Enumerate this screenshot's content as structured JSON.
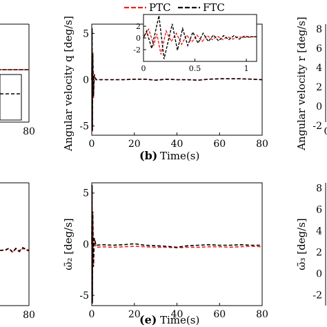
{
  "legend": {
    "placement": "top-center",
    "entries": [
      {
        "label": "PTC",
        "color": "#e8211d"
      },
      {
        "label": "FTC",
        "color": "#000000"
      }
    ]
  },
  "captions": {
    "b": "(b)",
    "e": "(e)",
    "time_label": "Time(s)"
  },
  "chart_data": [
    {
      "id": "panel-left-top",
      "type": "line",
      "xlabel": "",
      "ylabel": "",
      "x_ticks": [
        "80"
      ],
      "xlim": [
        0,
        80
      ],
      "note": "left panel partially visible (cropped)"
    },
    {
      "id": "panel-b",
      "type": "line",
      "caption": "(b)",
      "xlabel": "Time(s)",
      "ylabel": "Angular velocity q [deg/s]",
      "xlim": [
        0,
        80
      ],
      "ylim": [
        -6,
        6
      ],
      "x_ticks": [
        "0",
        "20",
        "40",
        "60",
        "80"
      ],
      "y_ticks": [
        "-5",
        "0",
        "5"
      ],
      "grid": false,
      "legend": "top-center",
      "series": [
        {
          "name": "PTC",
          "color": "#e8211d",
          "x": [
            0,
            0.15,
            0.3,
            0.5,
            0.8,
            1.2,
            2,
            5,
            10,
            15,
            20,
            25,
            30,
            35,
            40,
            45,
            50,
            55,
            60,
            65,
            70,
            75,
            80
          ],
          "y": [
            0,
            5.6,
            -5.6,
            3.0,
            -2.0,
            0.6,
            0,
            0,
            0,
            0,
            0.05,
            0.05,
            -0.05,
            0.05,
            0,
            0,
            -0.05,
            0.05,
            0.1,
            0.1,
            0.1,
            0.05,
            0
          ]
        },
        {
          "name": "FTC",
          "color": "#000000",
          "x": [
            0,
            0.15,
            0.3,
            0.5,
            0.8,
            1.2,
            2,
            5,
            10,
            15,
            20,
            25,
            30,
            35,
            40,
            45,
            50,
            55,
            60,
            65,
            70,
            75,
            80
          ],
          "y": [
            0,
            5.5,
            -5.5,
            2.8,
            -1.8,
            0.5,
            0,
            0,
            0,
            0,
            0.05,
            0.05,
            -0.05,
            0.05,
            0,
            0,
            -0.05,
            0.05,
            0.1,
            0.1,
            0.1,
            0.05,
            0
          ]
        }
      ],
      "inset": {
        "xlim": [
          0,
          1.1
        ],
        "ylim": [
          -4,
          4
        ],
        "x_ticks": [
          "0",
          "0.5",
          "1"
        ],
        "y_ticks": [
          "-2",
          "0",
          "2"
        ],
        "series": [
          {
            "name": "PTC",
            "color": "#e8211d",
            "x": [
              0,
              0.05,
              0.1,
              0.13,
              0.17,
              0.22,
              0.27,
              0.32,
              0.37,
              0.42,
              0.47,
              0.52,
              0.57,
              0.62,
              0.67,
              0.72,
              0.77,
              0.82,
              0.87,
              0.92,
              0.97,
              1.02,
              1.07,
              1.1
            ],
            "y": [
              0,
              1.5,
              -1.2,
              0.7,
              -2.8,
              1.2,
              -0.6,
              0.8,
              -1.1,
              0.5,
              -0.7,
              0.5,
              -0.6,
              0.4,
              -0.3,
              0.3,
              -0.3,
              0.2,
              -0.2,
              0.2,
              0.1,
              0.1,
              0.2,
              0.2
            ]
          },
          {
            "name": "FTC",
            "color": "#000000",
            "x": [
              0,
              0.03,
              0.08,
              0.15,
              0.2,
              0.28,
              0.33,
              0.38,
              0.43,
              0.48,
              0.53,
              0.58,
              0.63,
              0.68,
              0.73,
              0.78,
              0.83,
              0.88,
              0.93,
              0.98,
              1.03,
              1.08,
              1.1
            ],
            "y": [
              0,
              1.2,
              -1.8,
              3.8,
              -3.6,
              2.4,
              -2.1,
              1.6,
              -1.3,
              1.0,
              -0.9,
              0.8,
              -0.6,
              0.5,
              -0.5,
              0.4,
              -0.3,
              0.4,
              -0.2,
              0.3,
              0.2,
              0.2,
              0.2
            ]
          }
        ]
      }
    },
    {
      "id": "panel-right-top",
      "type": "line",
      "xlabel": "",
      "ylabel": "Angular velocity r [deg/s]",
      "ylim": [
        -3,
        8.5
      ],
      "x_ticks": [
        "0"
      ],
      "y_ticks": [
        "-2",
        "0",
        "2",
        "4",
        "6",
        "8"
      ],
      "note": "right panel partially visible (cropped)"
    },
    {
      "id": "panel-left-bottom",
      "type": "line",
      "xlabel": "",
      "ylabel": "",
      "x_ticks": [
        "80"
      ],
      "xlim": [
        0,
        80
      ],
      "note": "left panel partially visible (cropped)"
    },
    {
      "id": "panel-e",
      "type": "line",
      "caption": "(e)",
      "xlabel": "Time(s)",
      "ylabel": "ω̃₂ [deg/s]",
      "xlim": [
        0,
        80
      ],
      "ylim": [
        -6,
        6
      ],
      "x_ticks": [
        "0",
        "20",
        "40",
        "60",
        "80"
      ],
      "y_ticks": [
        "-5",
        "0",
        "5"
      ],
      "grid": false,
      "series": [
        {
          "name": "PTC",
          "color": "#e8211d",
          "x": [
            0,
            0.15,
            0.3,
            0.5,
            0.8,
            1.2,
            2,
            5,
            10,
            15,
            20,
            25,
            30,
            35,
            40,
            45,
            50,
            55,
            60,
            65,
            70,
            75,
            80
          ],
          "y": [
            0,
            5.5,
            -5.5,
            3,
            -2,
            0.5,
            -0.3,
            -0.25,
            -0.3,
            -0.25,
            -0.2,
            -0.25,
            -0.3,
            -0.3,
            -0.35,
            -0.3,
            -0.3,
            -0.25,
            -0.25,
            -0.3,
            -0.25,
            -0.2,
            -0.25
          ]
        },
        {
          "name": "FTC",
          "color": "#000000",
          "x": [
            0,
            0.15,
            0.3,
            0.5,
            0.8,
            1.2,
            2,
            5,
            10,
            15,
            20,
            25,
            30,
            35,
            40,
            45,
            50,
            55,
            60,
            65,
            70,
            75,
            80
          ],
          "y": [
            0,
            5.8,
            -5.8,
            3.2,
            -2.2,
            0.6,
            -0.1,
            -0.05,
            -0.1,
            -0.05,
            0.05,
            -0.1,
            -0.15,
            -0.2,
            -0.3,
            -0.15,
            -0.1,
            -0.05,
            -0.1,
            -0.1,
            -0.05,
            -0.1,
            -0.1
          ]
        }
      ]
    },
    {
      "id": "panel-right-bottom",
      "type": "line",
      "xlabel": "",
      "ylabel": "ω̃₃ [deg/s]",
      "ylim": [
        -3,
        8.5
      ],
      "x_ticks": [
        "0"
      ],
      "y_ticks": [
        "-2",
        "0",
        "2",
        "4",
        "6",
        "8"
      ],
      "note": "right panel partially visible (cropped)"
    }
  ]
}
